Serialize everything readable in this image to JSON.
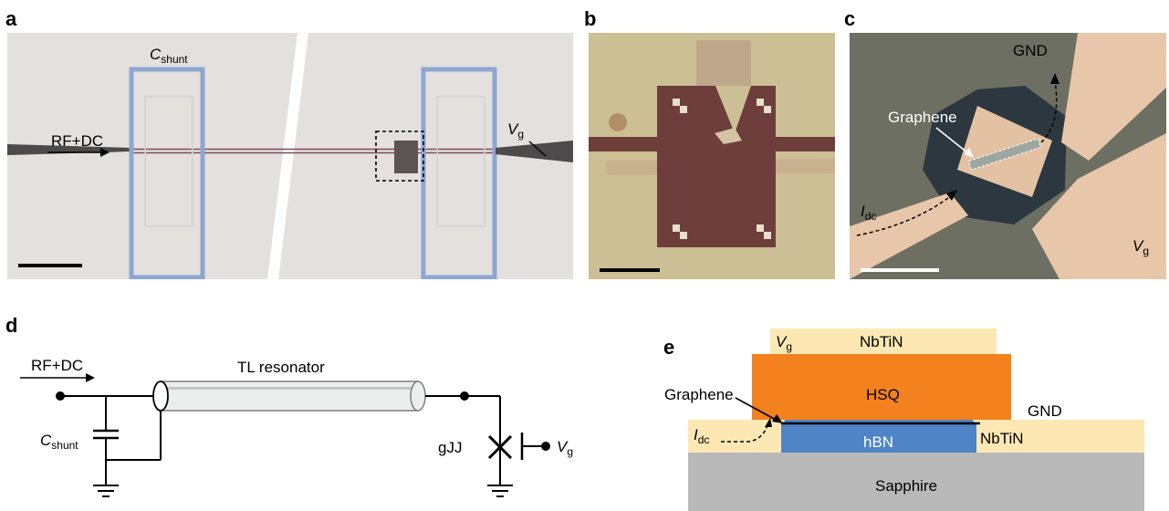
{
  "panels": {
    "a": {
      "letter": "a",
      "cshunt_main": "C",
      "cshunt_sub": "shunt",
      "rfdc": "RF+DC",
      "vg_main": "V",
      "vg_sub": "g"
    },
    "b": {
      "letter": "b"
    },
    "c": {
      "letter": "c",
      "gnd": "GND",
      "graphene": "Graphene",
      "idc_main": "I",
      "idc_sub": "dc",
      "vg_main": "V",
      "vg_sub": "g"
    },
    "d": {
      "letter": "d",
      "rfdc": "RF+DC",
      "tl": "TL resonator",
      "cshunt_main": "C",
      "cshunt_sub": "shunt",
      "gjj": "gJJ",
      "vg_main": "V",
      "vg_sub": "g"
    },
    "e": {
      "letter": "e",
      "vg_main": "V",
      "vg_sub": "g",
      "nbtin_top": "NbTiN",
      "hsq": "HSQ",
      "graphene": "Graphene",
      "gnd": "GND",
      "idc_main": "I",
      "idc_sub": "dc",
      "hbn": "hBN",
      "nbtin_right": "NbTiN",
      "sapphire": "Sapphire"
    }
  },
  "colors": {
    "micrograph_bg": "#e4e0dd",
    "chip_bg": "#cdbf95",
    "chip_dark": "#6e3e3c",
    "photo_bg": "#6c6f61",
    "gold": "#e8c6a9",
    "nbtin": "#fde8b3",
    "hsq": "#f2811e",
    "hbn": "#4f84c6",
    "sapphire": "#b9b9b9"
  }
}
